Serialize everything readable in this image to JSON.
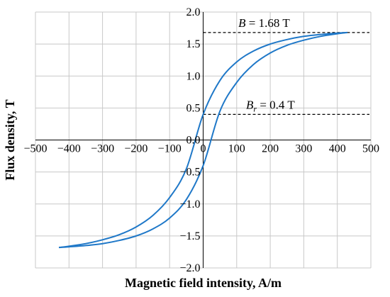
{
  "chart_data": {
    "type": "line",
    "title": "",
    "xlabel": "Magnetic field intensity, A/m",
    "ylabel": "Flux density, T",
    "xlim": [
      -500,
      500
    ],
    "ylim": [
      -2.0,
      2.0
    ],
    "x_ticks": [
      "−500",
      "−400",
      "−300",
      "−200",
      "−100",
      "0",
      "100",
      "200",
      "300",
      "400",
      "500"
    ],
    "y_ticks": [
      "2.0",
      "1.5",
      "1.0",
      "0.5",
      "0.0",
      "−0.5",
      "−1.0",
      "−1.5",
      "−2.0"
    ],
    "grid": true,
    "line_color": "#1f78c8",
    "series": [
      {
        "x": [
          -430,
          -400,
          -350,
          -300,
          -250,
          -200,
          -150,
          -100,
          -50,
          0,
          50,
          100,
          150,
          200,
          250,
          300,
          350,
          400,
          430
        ],
        "y": [
          -1.68,
          -1.66,
          -1.62,
          -1.56,
          -1.48,
          -1.36,
          -1.18,
          -0.9,
          -0.45,
          0.4,
          0.93,
          1.22,
          1.39,
          1.5,
          1.57,
          1.62,
          1.65,
          1.67,
          1.68
        ]
      },
      {
        "x": [
          -430,
          -400,
          -350,
          -300,
          -250,
          -200,
          -150,
          -100,
          -50,
          0,
          50,
          100,
          150,
          200,
          250,
          300,
          350,
          400,
          430
        ],
        "y": [
          -1.68,
          -1.67,
          -1.65,
          -1.62,
          -1.57,
          -1.5,
          -1.39,
          -1.22,
          -0.93,
          -0.4,
          0.45,
          0.9,
          1.18,
          1.36,
          1.48,
          1.56,
          1.62,
          1.66,
          1.68
        ]
      }
    ],
    "annotations": [
      {
        "label_italic": "B",
        "label_sub": "",
        "label_rest": " = 1.68 T",
        "y": 1.68,
        "x_from": 0,
        "x_to": 500
      },
      {
        "label_italic": "B",
        "label_sub": "r",
        "label_rest": " = 0.4 T",
        "y": 0.4,
        "x_from": 0,
        "x_to": 500
      }
    ]
  }
}
